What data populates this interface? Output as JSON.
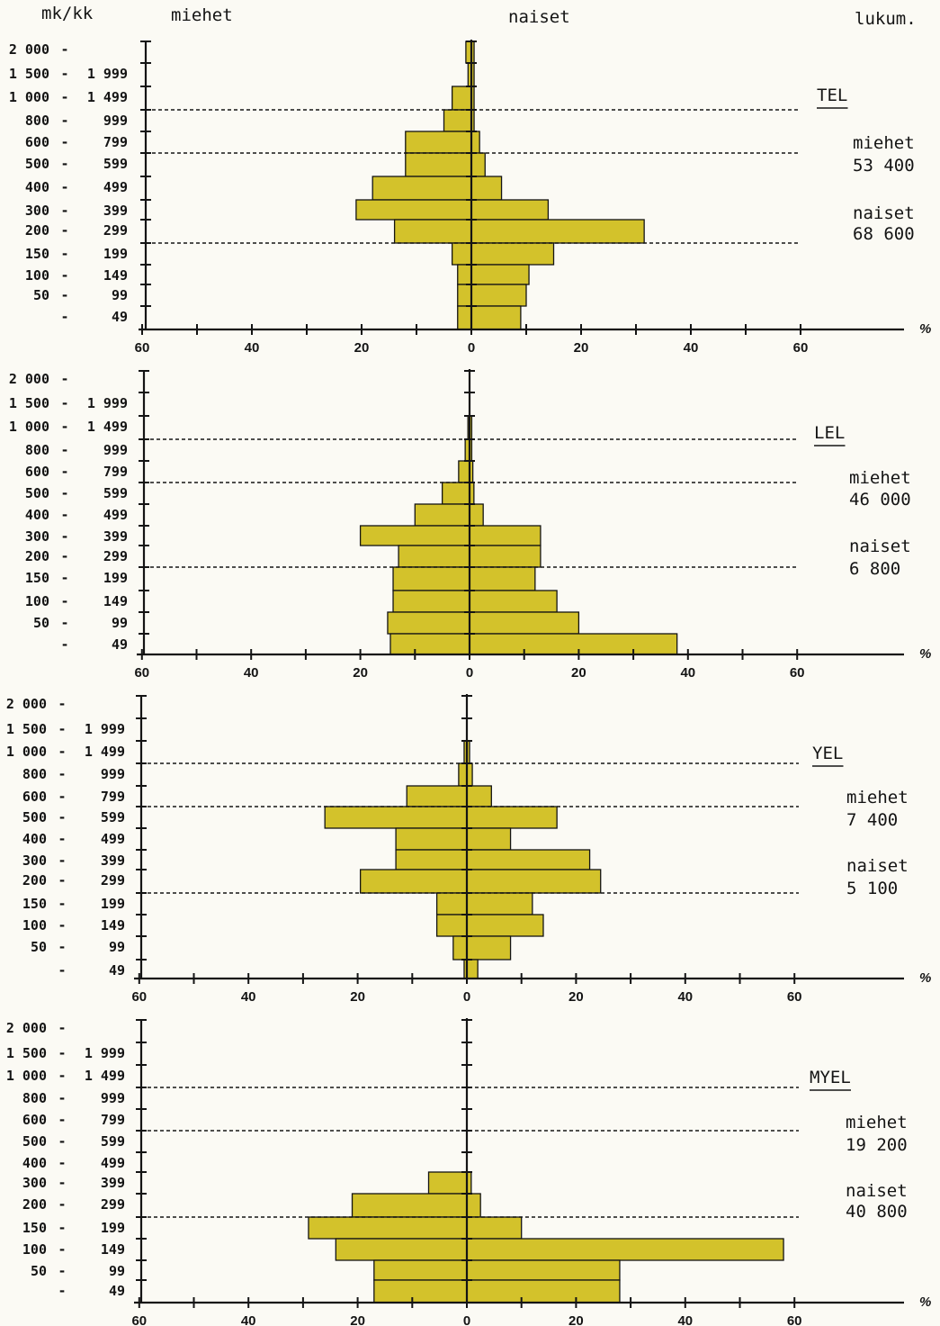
{
  "header": {
    "yunit": "mk/kk",
    "men": "miehet",
    "women": "naiset",
    "count": "lukum."
  },
  "percent_symbol": "%",
  "colors": {
    "fill": "#d3c22b",
    "ink": "#141414",
    "paper": "#fbfaf4"
  },
  "chart_data": [
    {
      "type": "bar",
      "orientation": "population-pyramid",
      "scheme": "TEL",
      "totals": {
        "men_label": "miehet",
        "men": "53 400",
        "women_label": "naiset",
        "women": "68 600"
      },
      "categories": [
        "2 000 -",
        "1 500 - 1 999",
        "1 000 - 1 499",
        "800 - 999",
        "600 - 799",
        "500 - 599",
        "400 - 499",
        "300 - 399",
        "200 - 299",
        "150 - 199",
        "100 - 149",
        "50 - 99",
        "- 49"
      ],
      "bins": [
        {
          "lo": 2000,
          "hi": 2500,
          "lo_label": "2 000",
          "hi_label": ""
        },
        {
          "lo": 1500,
          "hi": 2000,
          "lo_label": "1 500",
          "hi_label": "1 999"
        },
        {
          "lo": 1000,
          "hi": 1500,
          "lo_label": "1 000",
          "hi_label": "1 499"
        },
        {
          "lo": 800,
          "hi": 1000,
          "lo_label": "800",
          "hi_label": "999"
        },
        {
          "lo": 600,
          "hi": 800,
          "lo_label": "600",
          "hi_label": "799"
        },
        {
          "lo": 500,
          "hi": 600,
          "lo_label": "500",
          "hi_label": "599"
        },
        {
          "lo": 400,
          "hi": 500,
          "lo_label": "400",
          "hi_label": "499"
        },
        {
          "lo": 300,
          "hi": 400,
          "lo_label": "300",
          "hi_label": "399"
        },
        {
          "lo": 200,
          "hi": 300,
          "lo_label": "200",
          "hi_label": "299"
        },
        {
          "lo": 150,
          "hi": 200,
          "lo_label": "150",
          "hi_label": "199"
        },
        {
          "lo": 100,
          "hi": 150,
          "lo_label": "100",
          "hi_label": "149"
        },
        {
          "lo": 50,
          "hi": 100,
          "lo_label": "50",
          "hi_label": "99"
        },
        {
          "lo": 0,
          "hi": 50,
          "lo_label": "",
          "hi_label": "49"
        }
      ],
      "series": [
        {
          "name": "miehet",
          "values": [
            1,
            0.6,
            3.5,
            5,
            12,
            12,
            18,
            21,
            14,
            3.5,
            2.5,
            2.5,
            2.5
          ]
        },
        {
          "name": "naiset",
          "values": [
            0.5,
            0.5,
            0.5,
            0.5,
            1.5,
            2.5,
            5.5,
            14,
            31.5,
            15,
            10.5,
            10,
            9
          ]
        }
      ],
      "dotted_levels": [
        1000,
        600,
        200
      ],
      "xlim": [
        -60,
        60
      ],
      "xticks": [
        60,
        40,
        20,
        0,
        20,
        40,
        60
      ]
    },
    {
      "type": "bar",
      "orientation": "population-pyramid",
      "scheme": "LEL",
      "totals": {
        "men_label": "miehet",
        "men": "46 000",
        "women_label": "naiset",
        "women": "6 800"
      },
      "categories": [
        "2 000 -",
        "1 500 - 1 999",
        "1 000 - 1 499",
        "800 - 999",
        "600 - 799",
        "500 - 599",
        "400 - 499",
        "300 - 399",
        "200 - 299",
        "150 - 199",
        "100 - 149",
        "50 - 99",
        "- 49"
      ],
      "series": [
        {
          "name": "miehet",
          "values": [
            0,
            0,
            0.3,
            0.8,
            2,
            5,
            10,
            20,
            13,
            14,
            14,
            15,
            14.5
          ]
        },
        {
          "name": "naiset",
          "values": [
            0,
            0,
            0.4,
            0.4,
            0.6,
            0.8,
            2.5,
            13,
            13,
            12,
            16,
            20,
            38
          ]
        }
      ],
      "dotted_levels": [
        1000,
        600,
        200
      ],
      "xlim": [
        -60,
        60
      ],
      "xticks": [
        60,
        40,
        20,
        0,
        20,
        40,
        60
      ]
    },
    {
      "type": "bar",
      "orientation": "population-pyramid",
      "scheme": "YEL",
      "totals": {
        "men_label": "miehet",
        "men": "7 400",
        "women_label": "naiset",
        "women": "5 100"
      },
      "categories": [
        "2 000 -",
        "1 500 - 1 999",
        "1 000 - 1 499",
        "800 - 999",
        "600 - 799",
        "500 - 599",
        "400 - 499",
        "300 - 399",
        "200 - 299",
        "150 - 199",
        "100 - 149",
        "50 - 99",
        "- 49"
      ],
      "series": [
        {
          "name": "miehet",
          "values": [
            0,
            0,
            0.5,
            1.5,
            11,
            26,
            13,
            13,
            19.5,
            5.5,
            5.5,
            2.5,
            0.5
          ]
        },
        {
          "name": "naiset",
          "values": [
            0,
            0,
            0.5,
            1,
            4.5,
            16.5,
            8,
            22.5,
            24.5,
            12,
            14,
            8,
            2
          ]
        }
      ],
      "dotted_levels": [
        1000,
        600,
        200
      ],
      "xlim": [
        -60,
        60
      ],
      "xticks": [
        60,
        40,
        20,
        0,
        20,
        40,
        60
      ]
    },
    {
      "type": "bar",
      "orientation": "population-pyramid",
      "scheme": "MYEL",
      "totals": {
        "men_label": "miehet",
        "men": "19 200",
        "women_label": "naiset",
        "women": "40 800"
      },
      "categories": [
        "2 000 -",
        "1 500 - 1 999",
        "1 000 - 1 499",
        "800 - 999",
        "600 - 799",
        "500 - 599",
        "400 - 499",
        "300 - 399",
        "200 - 299",
        "150 - 199",
        "100 - 149",
        "50 - 99",
        "- 49"
      ],
      "series": [
        {
          "name": "miehet",
          "values": [
            0,
            0,
            0,
            0,
            0,
            0,
            0,
            7,
            21,
            29,
            24,
            17,
            17
          ]
        },
        {
          "name": "naiset",
          "values": [
            0,
            0,
            0,
            0,
            0,
            0,
            0,
            0.8,
            2.5,
            10,
            58,
            28,
            28
          ]
        }
      ],
      "dotted_levels": [
        1000,
        600,
        200
      ],
      "xlim": [
        -60,
        60
      ],
      "xticks": [
        60,
        40,
        20,
        0,
        20,
        40,
        60
      ]
    }
  ]
}
